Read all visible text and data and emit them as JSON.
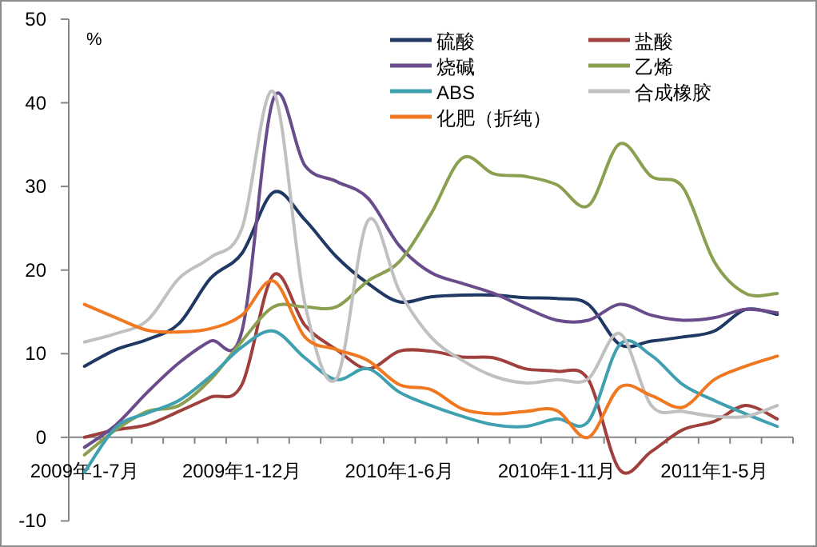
{
  "chart_data": {
    "type": "line",
    "ylabel": "%",
    "ylim": [
      -10,
      50
    ],
    "yticks": [
      -10,
      0,
      10,
      20,
      30,
      40,
      50
    ],
    "legend": "top right",
    "categories": [
      "2009年1-7月",
      null,
      null,
      null,
      null,
      "2009年1-12月",
      null,
      null,
      null,
      null,
      "2010年1-6月",
      null,
      null,
      null,
      null,
      "2010年1-11月",
      null,
      null,
      null,
      null,
      "2011年1-5月",
      null,
      null
    ],
    "series": [
      {
        "name": "硫酸",
        "color": "#1f3864",
        "values": [
          8.5,
          10.5,
          11.7,
          13.6,
          19,
          22,
          29.3,
          26,
          21.6,
          18.4,
          16.2,
          16.8,
          17,
          17,
          16.7,
          16.6,
          15.9,
          11.1,
          11.5,
          12,
          12.7,
          15.3,
          14.7
        ]
      },
      {
        "name": "盐酸",
        "color": "#a0403c",
        "values": [
          0,
          0.9,
          1.5,
          3.1,
          4.8,
          6.3,
          19.4,
          13.4,
          10.5,
          8.2,
          10.3,
          10.3,
          9.6,
          9.5,
          8.2,
          7.9,
          6.9,
          -3.9,
          -1.7,
          0.9,
          1.9,
          3.8,
          2.2
        ]
      },
      {
        "name": "烧碱",
        "color": "#6a4c8c",
        "values": [
          -1.2,
          1.5,
          5.4,
          8.9,
          11.5,
          12.7,
          40.5,
          32.5,
          30.6,
          28.6,
          22.9,
          19.7,
          18.4,
          17.2,
          15.5,
          14,
          14,
          15.9,
          14.6,
          14,
          14.3,
          15.3,
          14.9
        ]
      },
      {
        "name": "乙烯",
        "color": "#8aa050",
        "values": [
          -2.1,
          0.9,
          3.1,
          3.8,
          6.9,
          11.5,
          15.6,
          15.6,
          15.6,
          18.7,
          21,
          26.7,
          33.4,
          31.5,
          31.2,
          30.2,
          27.7,
          35.1,
          31.2,
          29.9,
          21,
          17.2,
          17.2
        ]
      },
      {
        "name": "ABS",
        "color": "#3fa0b0",
        "values": [
          -4.2,
          1.2,
          2.9,
          4.4,
          7.3,
          10.8,
          12.7,
          9.5,
          6.9,
          8.2,
          5.4,
          3.8,
          2.5,
          1.5,
          1.3,
          2.2,
          1.9,
          11.1,
          9.8,
          6.3,
          4.4,
          2.8,
          1.3
        ]
      },
      {
        "name": "合成橡胶",
        "color": "#c0c0c0",
        "values": [
          11.4,
          12.4,
          14,
          19,
          21.5,
          25,
          41.3,
          16,
          7,
          25.9,
          17.5,
          12,
          9.2,
          7.3,
          6.5,
          6.9,
          7,
          12.4,
          3.8,
          3.1,
          2.5,
          2.5,
          3.8
        ]
      },
      {
        "name": "化肥（折纯）",
        "color": "#f07820",
        "values": [
          15.9,
          14.3,
          12.8,
          12.6,
          13,
          14.6,
          18.7,
          12,
          10.5,
          9.2,
          6.3,
          5.7,
          3.4,
          2.8,
          3.1,
          3.2,
          0,
          6,
          5,
          3.6,
          6.9,
          8.5,
          9.7
        ]
      }
    ]
  }
}
